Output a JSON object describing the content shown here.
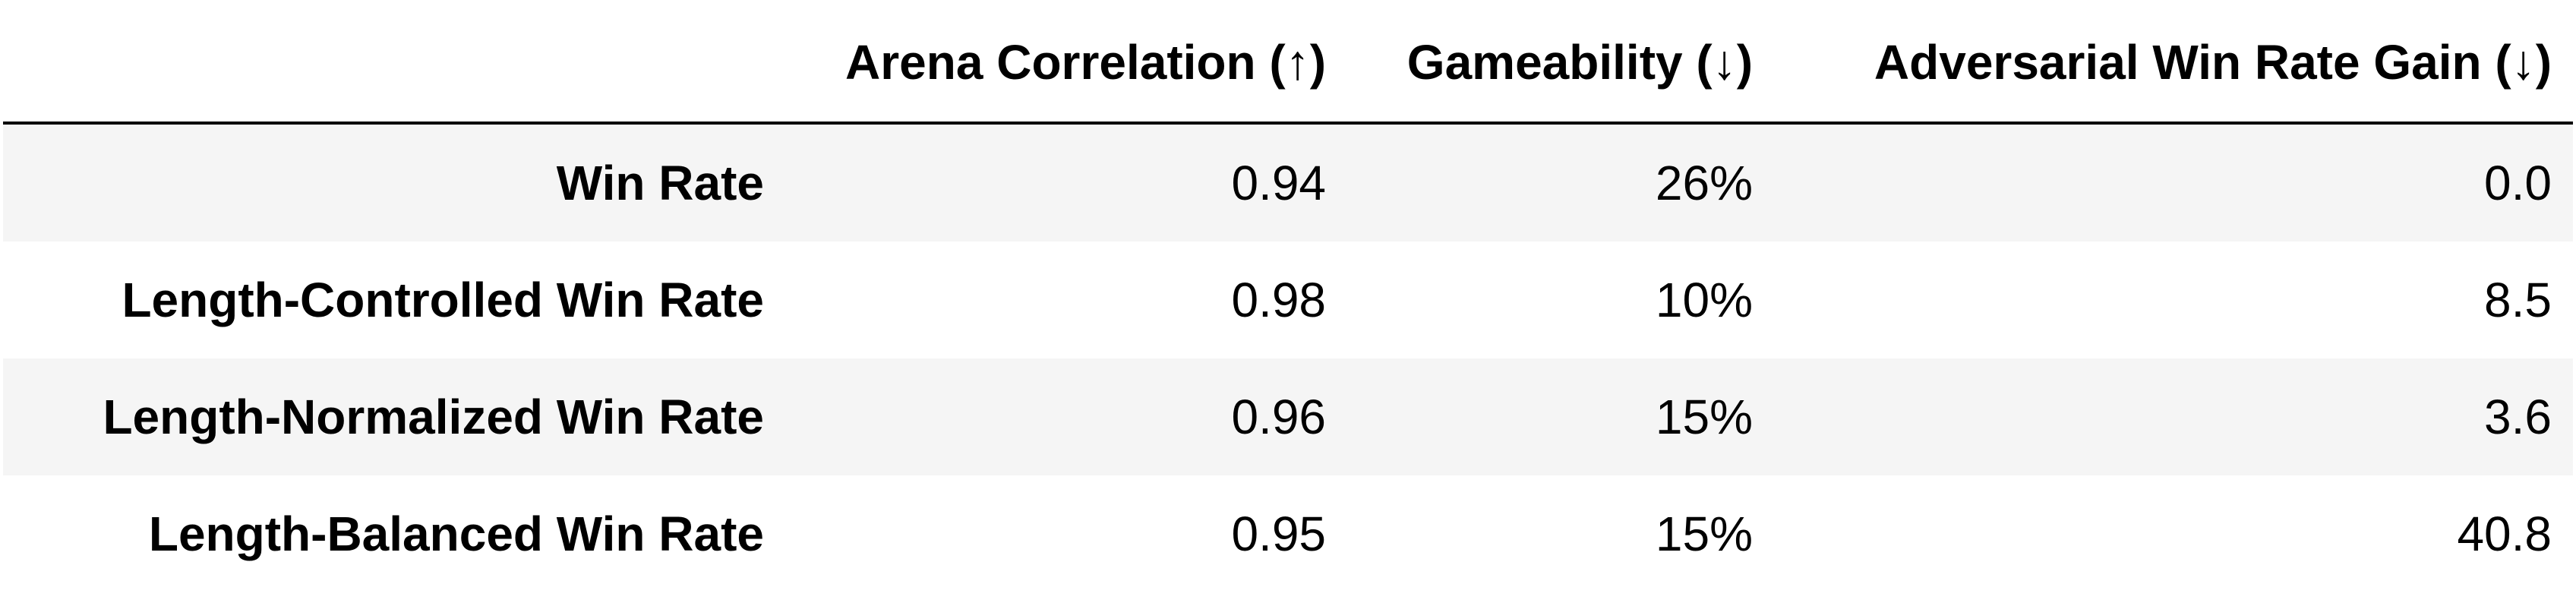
{
  "table": {
    "headers": [
      "",
      "Arena Correlation (↑)",
      "Gameability (↓)",
      "Adversarial Win Rate Gain (↓)"
    ],
    "rows": [
      {
        "label": "Win Rate",
        "arena_correlation": "0.94",
        "gameability": "26%",
        "adversarial_gain": "0.0"
      },
      {
        "label": "Length-Controlled Win Rate",
        "arena_correlation": "0.98",
        "gameability": "10%",
        "adversarial_gain": "8.5"
      },
      {
        "label": "Length-Normalized Win Rate",
        "arena_correlation": "0.96",
        "gameability": "15%",
        "adversarial_gain": "3.6"
      },
      {
        "label": "Length-Balanced Win Rate",
        "arena_correlation": "0.95",
        "gameability": "15%",
        "adversarial_gain": "40.8"
      }
    ]
  },
  "colors": {
    "stripe": "#f5f5f5",
    "text": "#000000",
    "rule": "#000000"
  }
}
